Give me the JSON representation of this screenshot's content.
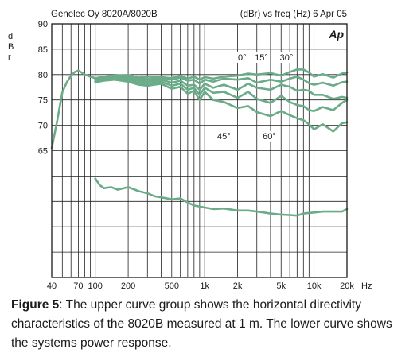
{
  "chart_data": {
    "type": "line",
    "title": "Genelec Oy 8020A/8020B",
    "subtitle": "(dBr) vs freq (Hz)  6 Apr 05",
    "logo": "Ap",
    "ylabel": "dBr",
    "xlabel": "Hz",
    "x_scale": "log",
    "xlim": [
      40,
      20000
    ],
    "ylim": [
      40,
      90
    ],
    "y_tick_labels": [
      {
        "value": 90,
        "label": "90"
      },
      {
        "value": 85,
        "label": "85"
      },
      {
        "value": 80,
        "label": "80"
      },
      {
        "value": 75,
        "label": "75"
      },
      {
        "value": 70,
        "label": "70"
      },
      {
        "value": 65,
        "label": "65"
      }
    ],
    "x_tick_labels": [
      {
        "value": 40,
        "label": "40"
      },
      {
        "value": 70,
        "label": "70"
      },
      {
        "value": 100,
        "label": "100"
      },
      {
        "value": 200,
        "label": "200"
      },
      {
        "value": 500,
        "label": "500"
      },
      {
        "value": 1000,
        "label": "1k"
      },
      {
        "value": 2000,
        "label": "2k"
      },
      {
        "value": 5000,
        "label": "5k"
      },
      {
        "value": 10000,
        "label": "10k"
      },
      {
        "value": 20000,
        "label": "20k"
      }
    ],
    "grid": true,
    "line_color": "#6aab88",
    "annotations": [
      {
        "text": "0°",
        "x": 2200,
        "y": 82.8
      },
      {
        "text": "15°",
        "x": 3300,
        "y": 82.8
      },
      {
        "text": "30°",
        "x": 5600,
        "y": 82.8
      },
      {
        "text": "45°",
        "x": 1500,
        "y": 67.3
      },
      {
        "text": "60°",
        "x": 3900,
        "y": 67.3
      }
    ],
    "series": [
      {
        "x": [
          40,
          45,
          50,
          55,
          60,
          65,
          70,
          75,
          80,
          90,
          100,
          120,
          150,
          200,
          250,
          300,
          400,
          500,
          600,
          700,
          800,
          900,
          1000,
          1200,
          1500,
          2000,
          2500,
          3000,
          4000,
          5000,
          6000,
          7000,
          8000,
          9000,
          10000,
          12000,
          15000,
          18000,
          20000
        ],
        "y": [
          65.5,
          71,
          76.5,
          78.5,
          79.8,
          80.5,
          80.8,
          80.4,
          80,
          79.6,
          79.3,
          79.6,
          79.8,
          79.9,
          79.4,
          79.6,
          79.5,
          79.3,
          79.8,
          79.2,
          79.6,
          79.0,
          79.5,
          79.2,
          79.6,
          79.8,
          80.2,
          80.0,
          80.3,
          79.8,
          80.5,
          81.0,
          81.0,
          80.4,
          79.6,
          80.1,
          79.4,
          80.2,
          80.4
        ]
      },
      {
        "x": [
          100,
          120,
          150,
          200,
          250,
          300,
          400,
          500,
          600,
          700,
          800,
          900,
          1000,
          1200,
          1500,
          2000,
          2500,
          3000,
          4000,
          5000,
          6000,
          7000,
          8000,
          9000,
          10000,
          12000,
          15000,
          18000,
          20000
        ],
        "y": [
          79.1,
          79.4,
          79.6,
          79.6,
          79.2,
          79.1,
          79.3,
          79.0,
          79.4,
          78.8,
          79.0,
          78.2,
          79.0,
          78.6,
          79.2,
          79.0,
          79.3,
          78.4,
          79.0,
          78.6,
          79.2,
          79.6,
          79.0,
          78.3,
          78.0,
          78.4,
          77.8,
          78.5,
          78.6
        ]
      },
      {
        "x": [
          100,
          120,
          150,
          200,
          250,
          300,
          400,
          500,
          600,
          700,
          800,
          900,
          1000,
          1200,
          1500,
          2000,
          2500,
          3000,
          4000,
          5000,
          6000,
          7000,
          8000,
          9000,
          10000,
          12000,
          15000,
          18000,
          20000
        ],
        "y": [
          78.9,
          79.2,
          79.4,
          79.3,
          78.8,
          78.6,
          79.0,
          78.4,
          78.8,
          77.8,
          78.0,
          77.0,
          78.2,
          77.4,
          78.0,
          77.0,
          78.2,
          77.4,
          77.0,
          78.0,
          77.6,
          76.8,
          77.0,
          76.8,
          76.0,
          76.0,
          75.2,
          75.6,
          75.4
        ]
      },
      {
        "x": [
          100,
          120,
          150,
          200,
          250,
          300,
          400,
          500,
          600,
          700,
          800,
          900,
          1000,
          1200,
          1500,
          2000,
          2500,
          3000,
          4000,
          5000,
          6000,
          7000,
          8000,
          9000,
          10000,
          12000,
          15000,
          18000,
          20000
        ],
        "y": [
          78.7,
          79.0,
          79.2,
          79.0,
          78.4,
          78.2,
          78.6,
          77.8,
          78.2,
          77.0,
          77.4,
          76.0,
          77.4,
          76.4,
          76.6,
          75.4,
          76.6,
          75.2,
          74.4,
          75.8,
          74.6,
          74.0,
          73.8,
          73.0,
          72.8,
          73.6,
          73.0,
          74.4,
          75.0
        ]
      },
      {
        "x": [
          100,
          120,
          150,
          200,
          250,
          300,
          400,
          500,
          600,
          700,
          800,
          900,
          1000,
          1200,
          1500,
          2000,
          2500,
          3000,
          4000,
          5000,
          6000,
          7000,
          8000,
          9000,
          10000,
          12000,
          15000,
          18000,
          20000
        ],
        "y": [
          78.5,
          78.8,
          79.0,
          78.6,
          78.0,
          77.8,
          78.2,
          77.2,
          77.6,
          76.2,
          76.8,
          75.0,
          76.6,
          75.0,
          74.6,
          73.4,
          73.8,
          72.6,
          71.8,
          72.8,
          72.0,
          71.4,
          71.0,
          70.2,
          69.2,
          70.2,
          68.8,
          70.4,
          70.6
        ]
      },
      {
        "x": [
          100,
          110,
          120,
          140,
          160,
          200,
          250,
          300,
          350,
          400,
          500,
          600,
          700,
          800,
          1000,
          1200,
          1500,
          2000,
          2500,
          3000,
          3500,
          4000,
          5000,
          6000,
          7000,
          8000,
          10000,
          12000,
          15000,
          18000,
          20000
        ],
        "y": [
          59.5,
          58.2,
          57.6,
          57.8,
          57.3,
          57.8,
          57.0,
          56.6,
          56.0,
          55.8,
          55.4,
          55.6,
          54.8,
          54.2,
          53.8,
          53.5,
          53.6,
          53.2,
          53.2,
          53.0,
          52.8,
          52.6,
          52.4,
          52.3,
          52.2,
          52.6,
          52.8,
          53.0,
          53.0,
          53.0,
          53.5
        ]
      }
    ]
  },
  "caption": {
    "label": "Figure 5",
    "text": ": The upper curve group shows the horizontal directivity characteristics of the 8020B measured at 1 m. The lower curve shows the systems power response."
  }
}
